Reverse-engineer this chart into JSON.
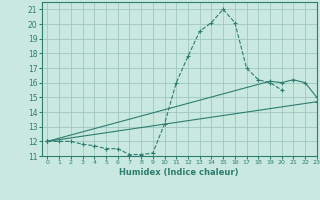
{
  "background_color": "#c8e8e0",
  "grid_color": "#a0c8c0",
  "line_color": "#2e7d6e",
  "xlim": [
    -0.5,
    23
  ],
  "ylim": [
    11,
    21.5
  ],
  "xlabel": "Humidex (Indice chaleur)",
  "xticks": [
    0,
    1,
    2,
    3,
    4,
    5,
    6,
    7,
    8,
    9,
    10,
    11,
    12,
    13,
    14,
    15,
    16,
    17,
    18,
    19,
    20,
    21,
    22,
    23
  ],
  "yticks": [
    11,
    12,
    13,
    14,
    15,
    16,
    17,
    18,
    19,
    20,
    21
  ],
  "line1_x": [
    0,
    1,
    2,
    3,
    4,
    5,
    6,
    7,
    8,
    9,
    10,
    11,
    12,
    13,
    14,
    15,
    16,
    17,
    18,
    19,
    20
  ],
  "line1_y": [
    12,
    12,
    12,
    11.8,
    11.7,
    11.5,
    11.5,
    11.1,
    11.1,
    11.2,
    13.2,
    16.0,
    17.8,
    19.5,
    20.1,
    21.0,
    20.1,
    17.0,
    16.2,
    16.0,
    15.5
  ],
  "line2_x": [
    0,
    19,
    20,
    21,
    22,
    23
  ],
  "line2_y": [
    12,
    16.1,
    16.0,
    16.2,
    16.0,
    15.0
  ],
  "line3_x": [
    0,
    23
  ],
  "line3_y": [
    12,
    14.7
  ],
  "xlabel_fontsize": 6,
  "xtick_fontsize": 4.5,
  "ytick_fontsize": 5.5
}
